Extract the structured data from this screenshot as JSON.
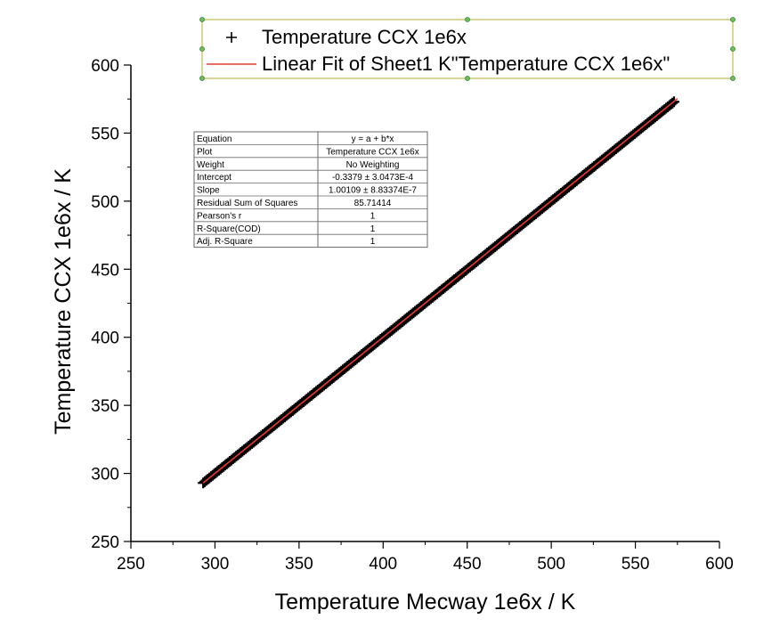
{
  "chart_data": {
    "type": "scatter",
    "xlabel": "Temperature Mecway 1e6x / K",
    "ylabel": "Temperature CCX 1e6x / K",
    "xlim": [
      250,
      600
    ],
    "ylim": [
      250,
      600
    ],
    "xticks": [
      250,
      300,
      350,
      400,
      450,
      500,
      550,
      600
    ],
    "yticks": [
      250,
      300,
      350,
      400,
      450,
      500,
      550,
      600
    ],
    "x_tick_labels": [
      "250",
      "300",
      "350",
      "400",
      "450",
      "500",
      "550",
      "600"
    ],
    "y_tick_labels": [
      "250",
      "300",
      "350",
      "400",
      "450",
      "500",
      "550",
      "600"
    ],
    "grid": false,
    "legend_position": "top",
    "legend": [
      {
        "label": "Temperature CCX 1e6x",
        "marker": "+",
        "color": "#000000"
      },
      {
        "label": "Linear Fit of Sheet1 K\"Temperature CCX 1e6x\"",
        "marker": "line",
        "color": "#e8392f"
      }
    ],
    "series": [
      {
        "name": "Temperature CCX 1e6x",
        "style": "scatter",
        "color": "#000000",
        "x_range": [
          293,
          573
        ],
        "y_range": [
          293,
          573
        ]
      },
      {
        "name": "Linear Fit of Sheet1 K\"Temperature CCX 1e6x\"",
        "style": "line",
        "color": "#e8392f",
        "intercept": -0.3379,
        "slope": 1.00109,
        "x_range": [
          293,
          575
        ]
      }
    ],
    "stats_table": [
      [
        "Equation",
        "y = a + b*x"
      ],
      [
        "Plot",
        "Temperature CCX 1e6x"
      ],
      [
        "Weight",
        "No Weighting"
      ],
      [
        "Intercept",
        "-0.3379 ± 3.0473E-4"
      ],
      [
        "Slope",
        "1.00109 ± 8.83374E-7"
      ],
      [
        "Residual Sum of Squares",
        "85.71414"
      ],
      [
        "Pearson's r",
        "1"
      ],
      [
        "R-Square(COD)",
        "1"
      ],
      [
        "Adj. R-Square",
        "1"
      ]
    ]
  }
}
